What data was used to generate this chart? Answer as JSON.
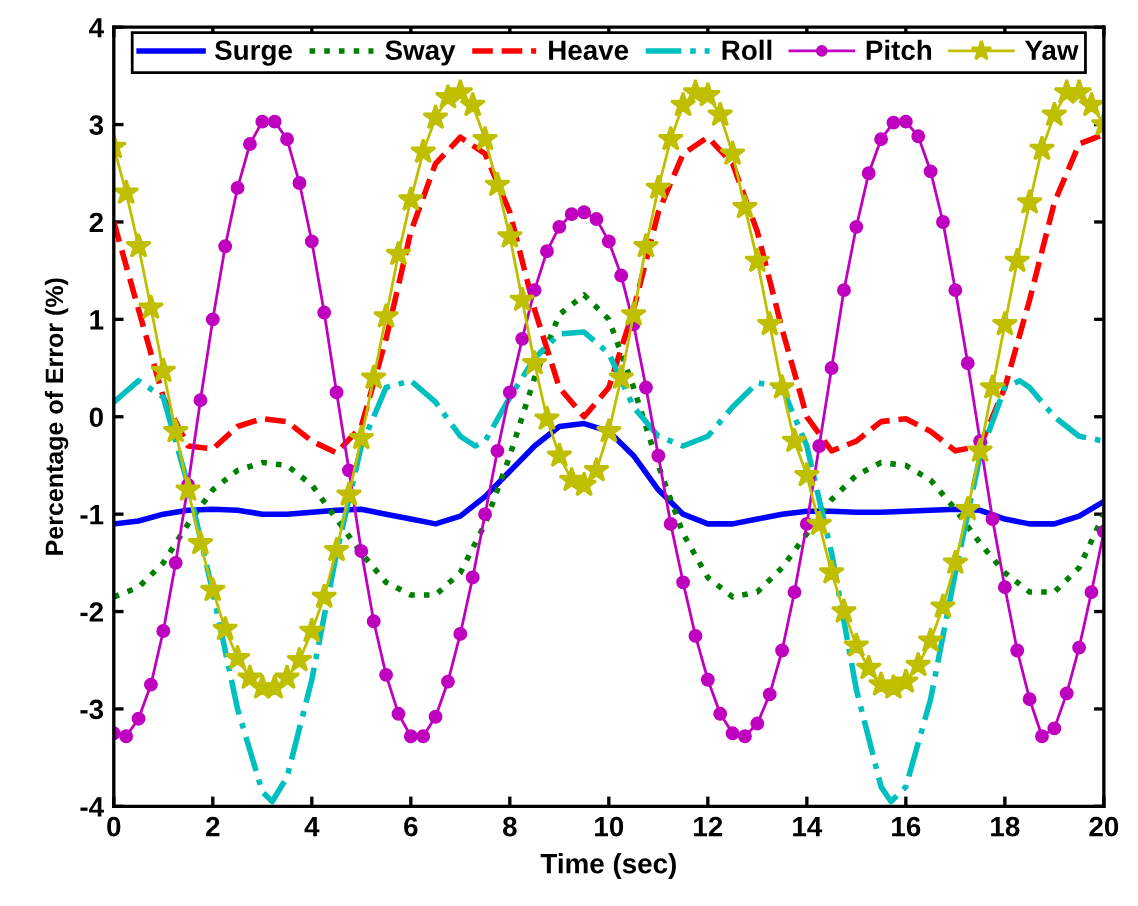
{
  "chart_data": {
    "type": "line",
    "xlabel": "Time (sec)",
    "ylabel": "Percentage of Error (%)",
    "xlim": [
      0,
      20
    ],
    "xticks": [
      0,
      2,
      4,
      6,
      8,
      10,
      12,
      14,
      16,
      18,
      20
    ],
    "ylim": [
      -4,
      4
    ],
    "yticks": [
      -4,
      -3,
      -2,
      -1,
      0,
      1,
      2,
      3,
      4
    ],
    "grid": false,
    "legend": "top",
    "x": [
      0,
      0.5,
      1,
      1.5,
      2,
      2.5,
      3,
      3.5,
      4,
      4.5,
      5,
      5.5,
      6,
      6.5,
      7,
      7.5,
      8,
      8.5,
      9,
      9.5,
      10,
      10.5,
      11,
      11.5,
      12,
      12.5,
      13,
      13.5,
      14,
      14.5,
      15,
      15.5,
      16,
      16.5,
      17,
      17.5,
      18,
      18.5,
      19,
      19.5,
      20
    ],
    "series": [
      {
        "name": "Surge",
        "color": "#0000ff",
        "line_style": "solid",
        "marker": "none",
        "values": [
          -1.1,
          -1.07,
          -1.0,
          -0.96,
          -0.95,
          -0.96,
          -1.0,
          -1.0,
          -0.98,
          -0.96,
          -0.95,
          -1.0,
          -1.05,
          -1.1,
          -1.02,
          -0.82,
          -0.56,
          -0.3,
          -0.1,
          -0.07,
          -0.15,
          -0.4,
          -0.75,
          -1.0,
          -1.1,
          -1.1,
          -1.05,
          -1.0,
          -0.97,
          -0.97,
          -0.98,
          -0.98,
          -0.97,
          -0.96,
          -0.95,
          -0.96,
          -1.05,
          -1.1,
          -1.1,
          -1.02,
          -0.87
        ]
      },
      {
        "name": "Sway",
        "color": "#008000",
        "line_style": "dotted",
        "marker": "none",
        "values": [
          -1.85,
          -1.75,
          -1.5,
          -1.1,
          -0.75,
          -0.55,
          -0.47,
          -0.5,
          -0.7,
          -1.05,
          -1.4,
          -1.7,
          -1.83,
          -1.83,
          -1.6,
          -1.1,
          -0.4,
          0.4,
          1.05,
          1.25,
          1.0,
          0.3,
          -0.5,
          -1.2,
          -1.65,
          -1.85,
          -1.8,
          -1.55,
          -1.2,
          -0.85,
          -0.6,
          -0.47,
          -0.5,
          -0.65,
          -0.95,
          -1.3,
          -1.6,
          -1.8,
          -1.8,
          -1.55,
          -1.0
        ]
      },
      {
        "name": "Heave",
        "color": "#ff0000",
        "line_style": "dashed",
        "marker": "none",
        "values": [
          2.0,
          1.1,
          0.2,
          -0.3,
          -0.33,
          -0.1,
          -0.02,
          -0.05,
          -0.25,
          -0.37,
          -0.1,
          0.8,
          1.9,
          2.6,
          2.87,
          2.7,
          2.1,
          1.1,
          0.3,
          0.0,
          0.3,
          1.1,
          2.1,
          2.7,
          2.87,
          2.6,
          1.9,
          0.9,
          0.0,
          -0.35,
          -0.25,
          -0.05,
          -0.02,
          -0.15,
          -0.35,
          -0.3,
          0.3,
          1.2,
          2.2,
          2.8,
          2.9
        ]
      },
      {
        "name": "Roll",
        "color": "#00bfbf",
        "line_style": "dashdot",
        "marker": "none",
        "x": [
          0,
          0.5,
          1,
          1.5,
          2,
          2.5,
          3,
          3.2,
          3.5,
          4,
          4.5,
          5,
          5.5,
          6,
          6.5,
          7,
          7.3,
          7.5,
          8,
          8.5,
          9,
          9.5,
          10,
          10.5,
          11,
          11.5,
          12,
          12.5,
          13,
          13.5,
          14,
          14.5,
          15,
          15.5,
          15.7,
          16,
          16.5,
          17,
          17.5,
          18,
          18.3,
          18.5,
          19,
          19.5,
          20
        ],
        "values": [
          0.15,
          0.37,
          0.2,
          -0.7,
          -1.8,
          -3.0,
          -3.85,
          -3.95,
          -3.7,
          -2.7,
          -1.4,
          -0.3,
          0.3,
          0.37,
          0.15,
          -0.2,
          -0.3,
          -0.25,
          0.2,
          0.6,
          0.85,
          0.87,
          0.65,
          0.1,
          -0.2,
          -0.3,
          -0.2,
          0.1,
          0.35,
          0.3,
          -0.3,
          -1.4,
          -2.8,
          -3.8,
          -3.95,
          -3.8,
          -2.9,
          -1.6,
          -0.4,
          0.3,
          0.37,
          0.3,
          0.0,
          -0.2,
          -0.25
        ]
      },
      {
        "name": "Pitch",
        "color": "#bf00bf",
        "line_style": "solid",
        "marker": "circle",
        "x": [
          0,
          0.25,
          0.5,
          0.75,
          1,
          1.25,
          1.5,
          1.75,
          2,
          2.25,
          2.5,
          2.75,
          3,
          3.25,
          3.5,
          3.75,
          4,
          4.25,
          4.5,
          4.75,
          5,
          5.25,
          5.5,
          5.75,
          6,
          6.25,
          6.5,
          6.75,
          7,
          7.25,
          7.5,
          7.75,
          8,
          8.25,
          8.5,
          8.75,
          9,
          9.25,
          9.5,
          9.75,
          10,
          10.25,
          10.5,
          10.75,
          11,
          11.25,
          11.5,
          11.75,
          12,
          12.25,
          12.5,
          12.75,
          13,
          13.25,
          13.5,
          13.75,
          14,
          14.25,
          14.5,
          14.75,
          15,
          15.25,
          15.5,
          15.75,
          16,
          16.25,
          16.5,
          16.75,
          17,
          17.25,
          17.5,
          17.75,
          18,
          18.25,
          18.5,
          18.75,
          19,
          19.25,
          19.5,
          19.75,
          20
        ],
        "values": [
          -3.25,
          -3.28,
          -3.1,
          -2.75,
          -2.2,
          -1.5,
          -0.7,
          0.17,
          1.0,
          1.75,
          2.35,
          2.8,
          3.03,
          3.03,
          2.85,
          2.4,
          1.8,
          1.07,
          0.25,
          -0.55,
          -1.38,
          -2.1,
          -2.65,
          -3.05,
          -3.28,
          -3.28,
          -3.08,
          -2.72,
          -2.23,
          -1.65,
          -1.0,
          -0.35,
          0.25,
          0.8,
          1.3,
          1.7,
          1.95,
          2.08,
          2.1,
          2.03,
          1.8,
          1.45,
          0.95,
          0.3,
          -0.4,
          -1.1,
          -1.7,
          -2.25,
          -2.7,
          -3.05,
          -3.25,
          -3.28,
          -3.15,
          -2.85,
          -2.4,
          -1.8,
          -1.1,
          -0.3,
          0.5,
          1.3,
          1.95,
          2.5,
          2.85,
          3.02,
          3.03,
          2.88,
          2.52,
          2.0,
          1.3,
          0.55,
          -0.25,
          -1.05,
          -1.75,
          -2.4,
          -2.9,
          -3.28,
          -3.2,
          -2.84,
          -2.37,
          -1.8,
          -1.18
        ]
      },
      {
        "name": "Yaw",
        "color": "#bfbf00",
        "line_style": "solid",
        "marker": "star",
        "x": [
          0,
          0.25,
          0.5,
          0.75,
          1,
          1.25,
          1.5,
          1.75,
          2,
          2.25,
          2.5,
          2.75,
          3,
          3.25,
          3.5,
          3.75,
          4,
          4.25,
          4.5,
          4.75,
          5,
          5.25,
          5.5,
          5.75,
          6,
          6.25,
          6.5,
          6.75,
          7,
          7.25,
          7.5,
          7.75,
          8,
          8.25,
          8.5,
          8.75,
          9,
          9.25,
          9.5,
          9.75,
          10,
          10.25,
          10.5,
          10.75,
          11,
          11.25,
          11.5,
          11.75,
          12,
          12.25,
          12.5,
          12.75,
          13,
          13.25,
          13.5,
          13.75,
          14,
          14.25,
          14.5,
          14.75,
          15,
          15.25,
          15.5,
          15.75,
          16,
          16.25,
          16.5,
          16.75,
          17,
          17.25,
          17.5,
          17.75,
          18,
          18.25,
          18.5,
          18.75,
          19,
          19.25,
          19.5,
          19.75,
          20
        ],
        "values": [
          2.77,
          2.3,
          1.75,
          1.12,
          0.47,
          -0.15,
          -0.75,
          -1.3,
          -1.78,
          -2.18,
          -2.48,
          -2.68,
          -2.78,
          -2.78,
          -2.68,
          -2.5,
          -2.2,
          -1.85,
          -1.37,
          -0.8,
          -0.22,
          0.4,
          1.03,
          1.67,
          2.23,
          2.72,
          3.07,
          3.28,
          3.33,
          3.2,
          2.85,
          2.38,
          1.85,
          1.2,
          0.55,
          -0.02,
          -0.4,
          -0.65,
          -0.7,
          -0.55,
          -0.15,
          0.4,
          1.05,
          1.75,
          2.35,
          2.85,
          3.2,
          3.33,
          3.3,
          3.1,
          2.7,
          2.15,
          1.6,
          0.95,
          0.3,
          -0.25,
          -0.6,
          -1.1,
          -1.6,
          -2.0,
          -2.35,
          -2.58,
          -2.75,
          -2.78,
          -2.72,
          -2.55,
          -2.3,
          -1.95,
          -1.5,
          -0.95,
          -0.35,
          0.3,
          0.95,
          1.6,
          2.2,
          2.75,
          3.1,
          3.33,
          3.33,
          3.2,
          3.0
        ]
      }
    ]
  }
}
